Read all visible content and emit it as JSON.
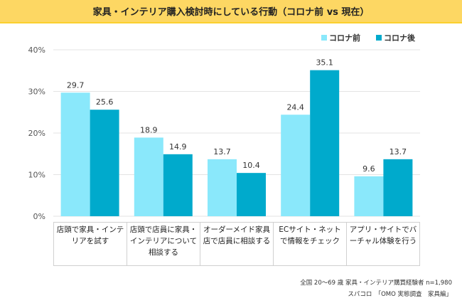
{
  "title": "家具・インテリア購入検討時にしている行動（コロナ前 vs 現在）",
  "colors": {
    "title_bg": "#fdd763",
    "before": "#8ae8fb",
    "after": "#00aacc",
    "grid": "#e3e3e3"
  },
  "chart_data": {
    "type": "bar",
    "title": "家具・インテリア購入検討時にしている行動（コロナ前 vs 現在）",
    "xlabel": "",
    "ylabel": "",
    "ylim": [
      0,
      40
    ],
    "yticks": [
      "0%",
      "10%",
      "20%",
      "30%",
      "40%"
    ],
    "ytick_values": [
      0,
      10,
      20,
      30,
      40
    ],
    "grid": true,
    "legend_position": "top-right",
    "categories": [
      "店頭で家具・インテリアを試す",
      "店頭で店員に家具・インテリアについて相談する",
      "オーダーメイド家具店で店員に相談する",
      "ECサイト・ネットで情報をチェック",
      "アプリ・サイトでバーチャル体験を行う"
    ],
    "series": [
      {
        "name": "コロナ前",
        "color": "#8ae8fb",
        "values": [
          29.7,
          18.9,
          13.7,
          24.4,
          9.6
        ]
      },
      {
        "name": "コロナ後",
        "color": "#00aacc",
        "values": [
          25.6,
          14.9,
          10.4,
          35.1,
          13.7
        ]
      }
    ]
  },
  "legend": [
    {
      "label": "コロナ前",
      "color": "#8ae8fb"
    },
    {
      "label": "コロナ後",
      "color": "#00aacc"
    }
  ],
  "source": {
    "line1": "全国 20～69 歳 家具・インテリア購買経験者 n=1,980",
    "line2": "スパコロ　「OMO 実態調査　家具編」"
  }
}
